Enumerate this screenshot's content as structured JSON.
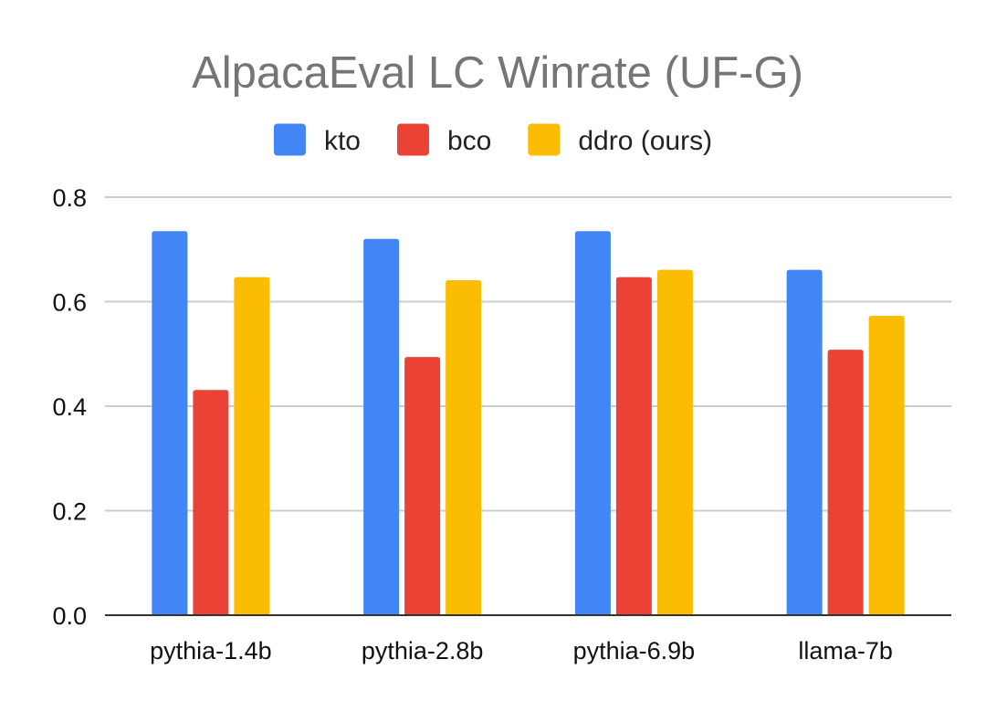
{
  "chart_data": {
    "type": "bar",
    "title": "AlpacaEval LC Winrate (UF-G)",
    "xlabel": "",
    "ylabel": "",
    "categories": [
      "pythia-1.4b",
      "pythia-2.8b",
      "pythia-6.9b",
      "llama-7b"
    ],
    "series": [
      {
        "name": "kto",
        "color": "#4285F4",
        "values": [
          0.735,
          0.72,
          0.735,
          0.661
        ]
      },
      {
        "name": "bco",
        "color": "#EA4335",
        "values": [
          0.431,
          0.494,
          0.647,
          0.508
        ]
      },
      {
        "name": "ddro (ours)",
        "color": "#FBBC04",
        "values": [
          0.647,
          0.641,
          0.661,
          0.573
        ]
      }
    ],
    "ylim": [
      0,
      0.8
    ],
    "yticks": [
      "0.0",
      "0.2",
      "0.4",
      "0.6",
      "0.8"
    ],
    "grid": true,
    "legend_position": "top"
  }
}
